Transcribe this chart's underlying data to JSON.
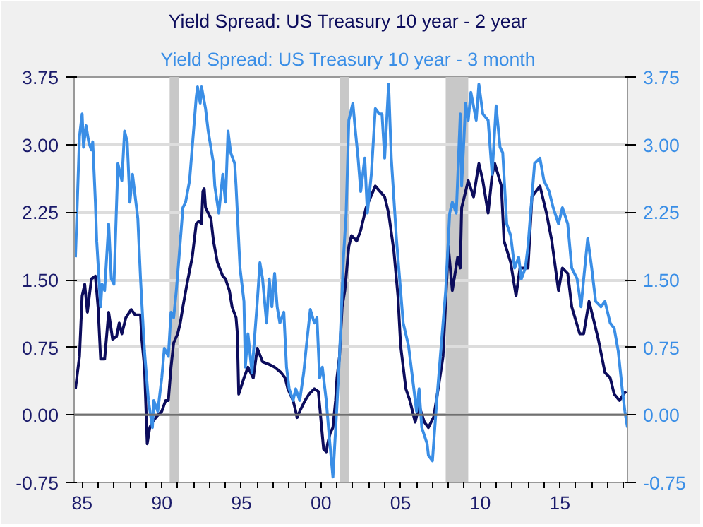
{
  "chart_data": {
    "type": "line",
    "legend": "top",
    "grid": "y",
    "xlim": [
      "1984-07",
      "2019-04"
    ],
    "xticks": [
      {
        "value": "1985",
        "label": "85"
      },
      {
        "value": "1990",
        "label": "90"
      },
      {
        "value": "1995",
        "label": "95"
      },
      {
        "value": "2000",
        "label": "00"
      },
      {
        "value": "2005",
        "label": "05"
      },
      {
        "value": "2010",
        "label": "10"
      },
      {
        "value": "2015",
        "label": "15"
      }
    ],
    "ylim": [
      -0.75,
      3.75
    ],
    "yticks": [
      {
        "value": -0.75,
        "label": "-0.75"
      },
      {
        "value": 0,
        "label": "0.00"
      },
      {
        "value": 0.75,
        "label": "0.75"
      },
      {
        "value": 1.5,
        "label": "1.50"
      },
      {
        "value": 2.25,
        "label": "2.25"
      },
      {
        "value": 3,
        "label": "3.00"
      },
      {
        "value": 3.75,
        "label": "3.75"
      }
    ],
    "y2lim": [
      -0.75,
      3.75
    ],
    "y2ticks": [
      {
        "value": -0.75,
        "label": "-0.75"
      },
      {
        "value": 0,
        "label": "0.00"
      },
      {
        "value": 0.75,
        "label": "0.75"
      },
      {
        "value": 1.5,
        "label": "1.50"
      },
      {
        "value": 2.25,
        "label": "2.25"
      },
      {
        "value": 3,
        "label": "3.00"
      },
      {
        "value": 3.75,
        "label": "3.75"
      }
    ],
    "ref_lines": [
      {
        "axis": "y",
        "value": 0,
        "color": "#707070"
      }
    ],
    "bands": [
      {
        "axis": "x",
        "from": "1990-07",
        "to": "1991-02",
        "color": "#c8c8c8"
      },
      {
        "axis": "x",
        "from": "2001-03",
        "to": "2001-10",
        "color": "#c8c8c8"
      },
      {
        "axis": "x",
        "from": "2007-11",
        "to": "2009-04",
        "color": "#c8c8c8"
      }
    ],
    "series": [
      {
        "name": "Yield Spread:  US Treasury 10 year - 2 year",
        "color": "#0c0c5c",
        "x": [
          "1984-08",
          "1984-11",
          "1985-01",
          "1985-03",
          "1985-05",
          "1985-08",
          "1985-11",
          "1986-01",
          "1986-03",
          "1986-06",
          "1986-09",
          "1986-12",
          "1987-03",
          "1987-05",
          "1987-07",
          "1987-10",
          "1988-02",
          "1988-05",
          "1988-09",
          "1988-10",
          "1988-12",
          "1989-02",
          "1989-04",
          "1989-06",
          "1989-09",
          "1990-01",
          "1990-04",
          "1990-06",
          "1990-08",
          "1990-10",
          "1991-01",
          "1991-03",
          "1991-05",
          "1991-08",
          "1991-12",
          "1992-03",
          "1992-05",
          "1992-07",
          "1992-08",
          "1992-09",
          "1992-10",
          "1993-02",
          "1993-04",
          "1993-07",
          "1993-11",
          "1994-01",
          "1994-04",
          "1994-06",
          "1994-09",
          "1994-10",
          "1994-11",
          "1995-03",
          "1995-06",
          "1995-10",
          "1996-01",
          "1996-05",
          "1996-10",
          "1997-02",
          "1997-07",
          "1997-10",
          "1997-12",
          "1998-04",
          "1998-06",
          "1998-07",
          "1998-09",
          "1999-01",
          "1999-04",
          "1999-08",
          "1999-11",
          "2000-03",
          "2000-05",
          "2000-06",
          "2000-08",
          "2000-10",
          "2000-12",
          "2001-01",
          "2001-03",
          "2001-05",
          "2001-07",
          "2001-10",
          "2001-12",
          "2002-04",
          "2002-07",
          "2002-11",
          "2003-06",
          "2004-01",
          "2004-04",
          "2004-08",
          "2004-11",
          "2005-01",
          "2005-05",
          "2005-08",
          "2005-12",
          "2006-03",
          "2006-07",
          "2006-10",
          "2007-02",
          "2007-06",
          "2007-09",
          "2008-01",
          "2008-04",
          "2008-08",
          "2008-10",
          "2008-11",
          "2009-04",
          "2009-08",
          "2009-12",
          "2010-03",
          "2010-07",
          "2010-10",
          "2010-12",
          "2011-05",
          "2011-07",
          "2011-12",
          "2012-04",
          "2012-07",
          "2013-01",
          "2013-04",
          "2013-10",
          "2014-03",
          "2014-07",
          "2014-12",
          "2015-03",
          "2015-07",
          "2015-10",
          "2016-04",
          "2016-07",
          "2016-11",
          "2017-02",
          "2017-06",
          "2017-11",
          "2018-03",
          "2018-06",
          "2018-10",
          "2019-01",
          "2019-03"
        ],
        "values": [
          0.29,
          0.65,
          1.32,
          1.45,
          1.14,
          1.51,
          1.54,
          1.2,
          0.62,
          0.62,
          1.14,
          0.84,
          0.87,
          1.02,
          0.9,
          1.08,
          1.17,
          1.11,
          1.11,
          0.84,
          0.53,
          -0.32,
          -0.14,
          -0.08,
          -0.02,
          0.04,
          0.16,
          0.16,
          0.53,
          0.8,
          0.9,
          1.02,
          1.2,
          1.45,
          1.75,
          2.12,
          2.15,
          2.12,
          2.48,
          2.51,
          2.3,
          2.18,
          1.93,
          1.69,
          1.54,
          1.51,
          1.38,
          1.2,
          1.08,
          0.9,
          0.23,
          0.41,
          0.53,
          0.41,
          0.74,
          0.59,
          0.56,
          0.53,
          0.47,
          0.41,
          0.29,
          0.16,
          0.04,
          -0.03,
          0.04,
          0.16,
          0.23,
          0.29,
          0.26,
          -0.38,
          -0.41,
          -0.32,
          -0.2,
          -0.14,
          0.16,
          0.41,
          0.65,
          1.2,
          1.38,
          1.87,
          1.99,
          1.93,
          2.05,
          2.3,
          2.54,
          2.42,
          2.24,
          1.81,
          1.32,
          0.77,
          0.29,
          0.16,
          -0.08,
          0.1,
          -0.08,
          -0.14,
          -0.02,
          0.35,
          0.65,
          1.87,
          1.38,
          1.75,
          1.63,
          2.3,
          2.6,
          2.42,
          2.79,
          2.6,
          2.24,
          2.66,
          2.79,
          2.54,
          1.93,
          1.69,
          1.32,
          1.63,
          1.63,
          2.42,
          2.54,
          2.24,
          1.93,
          1.38,
          1.63,
          1.57,
          1.2,
          0.9,
          0.9,
          1.26,
          1.08,
          0.84,
          0.47,
          0.41,
          0.23,
          0.16,
          0.23,
          0.26
        ]
      },
      {
        "name": "Yield Spread:  US Treasury 10 year - 3 month",
        "color": "#3a8ee6",
        "axis": "y2",
        "x": [
          "1984-08",
          "1984-11",
          "1985-01",
          "1985-02",
          "1985-04",
          "1985-06",
          "1985-08",
          "1985-09",
          "1985-11",
          "1985-12",
          "1986-03",
          "1986-04",
          "1986-06",
          "1986-09",
          "1986-11",
          "1987-01",
          "1987-04",
          "1987-07",
          "1987-09",
          "1987-11",
          "1988-01",
          "1988-03",
          "1988-07",
          "1988-09",
          "1988-12",
          "1989-03",
          "1989-06",
          "1989-07",
          "1989-10",
          "1990-01",
          "1990-03",
          "1990-06",
          "1990-08",
          "1990-10",
          "1990-12",
          "1991-02",
          "1991-05",
          "1991-07",
          "1991-10",
          "1991-12",
          "1992-03",
          "1992-04",
          "1992-06",
          "1992-07",
          "1992-10",
          "1992-12",
          "1993-04",
          "1993-05",
          "1993-08",
          "1993-11",
          "1994-01",
          "1994-03",
          "1994-05",
          "1994-08",
          "1994-09",
          "1994-12",
          "1995-03",
          "1995-04",
          "1995-06",
          "1995-09",
          "1996-01",
          "1996-03",
          "1996-05",
          "1996-08",
          "1996-10",
          "1996-12",
          "1997-02",
          "1997-04",
          "1997-06",
          "1997-09",
          "1997-11",
          "1998-01",
          "1998-04",
          "1998-06",
          "1998-09",
          "1998-12",
          "1999-02",
          "1999-05",
          "1999-08",
          "1999-10",
          "1999-12",
          "2000-02",
          "2000-05",
          "2000-07",
          "2000-10",
          "2001-01",
          "2001-03",
          "2001-06",
          "2001-08",
          "2001-10",
          "2002-01",
          "2002-03",
          "2002-05",
          "2002-07",
          "2002-10",
          "2002-12",
          "2003-03",
          "2003-06",
          "2003-09",
          "2003-11",
          "2004-01",
          "2004-04",
          "2004-06",
          "2004-10",
          "2005-03",
          "2005-07",
          "2005-10",
          "2006-01",
          "2006-03",
          "2006-05",
          "2006-09",
          "2006-10",
          "2007-01",
          "2007-04",
          "2007-07",
          "2007-11",
          "2008-02",
          "2008-04",
          "2008-07",
          "2008-10",
          "2008-11",
          "2009-02",
          "2009-04",
          "2009-06",
          "2009-10",
          "2009-12",
          "2010-03",
          "2010-07",
          "2010-10",
          "2011-01",
          "2011-04",
          "2011-06",
          "2011-09",
          "2011-12",
          "2012-03",
          "2012-06",
          "2012-08",
          "2012-11",
          "2013-01",
          "2013-03",
          "2013-06",
          "2013-10",
          "2014-01",
          "2014-05",
          "2014-08",
          "2014-12",
          "2015-03",
          "2015-07",
          "2015-10",
          "2016-02",
          "2016-05",
          "2016-07",
          "2016-10",
          "2017-01",
          "2017-04",
          "2017-08",
          "2017-11",
          "2018-03",
          "2018-06",
          "2018-09",
          "2018-12",
          "2019-02",
          "2019-04"
        ],
        "values": [
          1.75,
          3.09,
          3.34,
          2.97,
          3.21,
          3.03,
          2.94,
          3.03,
          2.36,
          1.93,
          1.2,
          1.45,
          1.38,
          2.12,
          1.51,
          1.45,
          2.79,
          2.6,
          3.15,
          3.03,
          2.36,
          2.67,
          2.18,
          1.51,
          0.71,
          0.16,
          -0.14,
          0.16,
          0.04,
          0.41,
          0.74,
          0.65,
          1.14,
          1.08,
          1.38,
          1.75,
          2.3,
          2.36,
          2.6,
          2.97,
          3.52,
          3.64,
          3.46,
          3.64,
          3.4,
          3.15,
          2.79,
          2.54,
          2.24,
          2.67,
          2.36,
          3.15,
          2.91,
          2.79,
          2.54,
          1.63,
          1.26,
          0.53,
          0.9,
          0.47,
          1.26,
          1.69,
          1.51,
          1.02,
          1.51,
          1.2,
          1.57,
          1.2,
          1.02,
          1.14,
          0.53,
          0.29,
          0.16,
          0.29,
          0.16,
          0.47,
          0.77,
          1.17,
          1.02,
          1.08,
          0.41,
          0.53,
          0.16,
          -0.2,
          -0.69,
          0.1,
          0.65,
          1.75,
          2.24,
          3.27,
          3.46,
          3.15,
          2.85,
          2.48,
          2.85,
          2.24,
          2.67,
          3.4,
          3.34,
          3.34,
          2.85,
          3.67,
          2.85,
          1.93,
          1.02,
          0.77,
          0.41,
          0.04,
          0.29,
          -0.14,
          -0.32,
          -0.45,
          -0.51,
          0.1,
          0.65,
          1.38,
          2.24,
          2.36,
          2.24,
          3.34,
          2.54,
          3.46,
          3.27,
          3.58,
          3.27,
          3.67,
          3.34,
          3.27,
          2.67,
          3.43,
          2.97,
          2.91,
          2.12,
          1.99,
          1.63,
          1.75,
          1.51,
          1.63,
          1.87,
          2.24,
          2.79,
          2.85,
          2.6,
          2.48,
          2.3,
          2.12,
          2.3,
          2.12,
          1.63,
          1.51,
          1.2,
          1.51,
          1.96,
          1.63,
          1.26,
          1.2,
          1.26,
          1.02,
          0.96,
          0.71,
          0.29,
          0.04,
          -0.14
        ]
      }
    ]
  }
}
